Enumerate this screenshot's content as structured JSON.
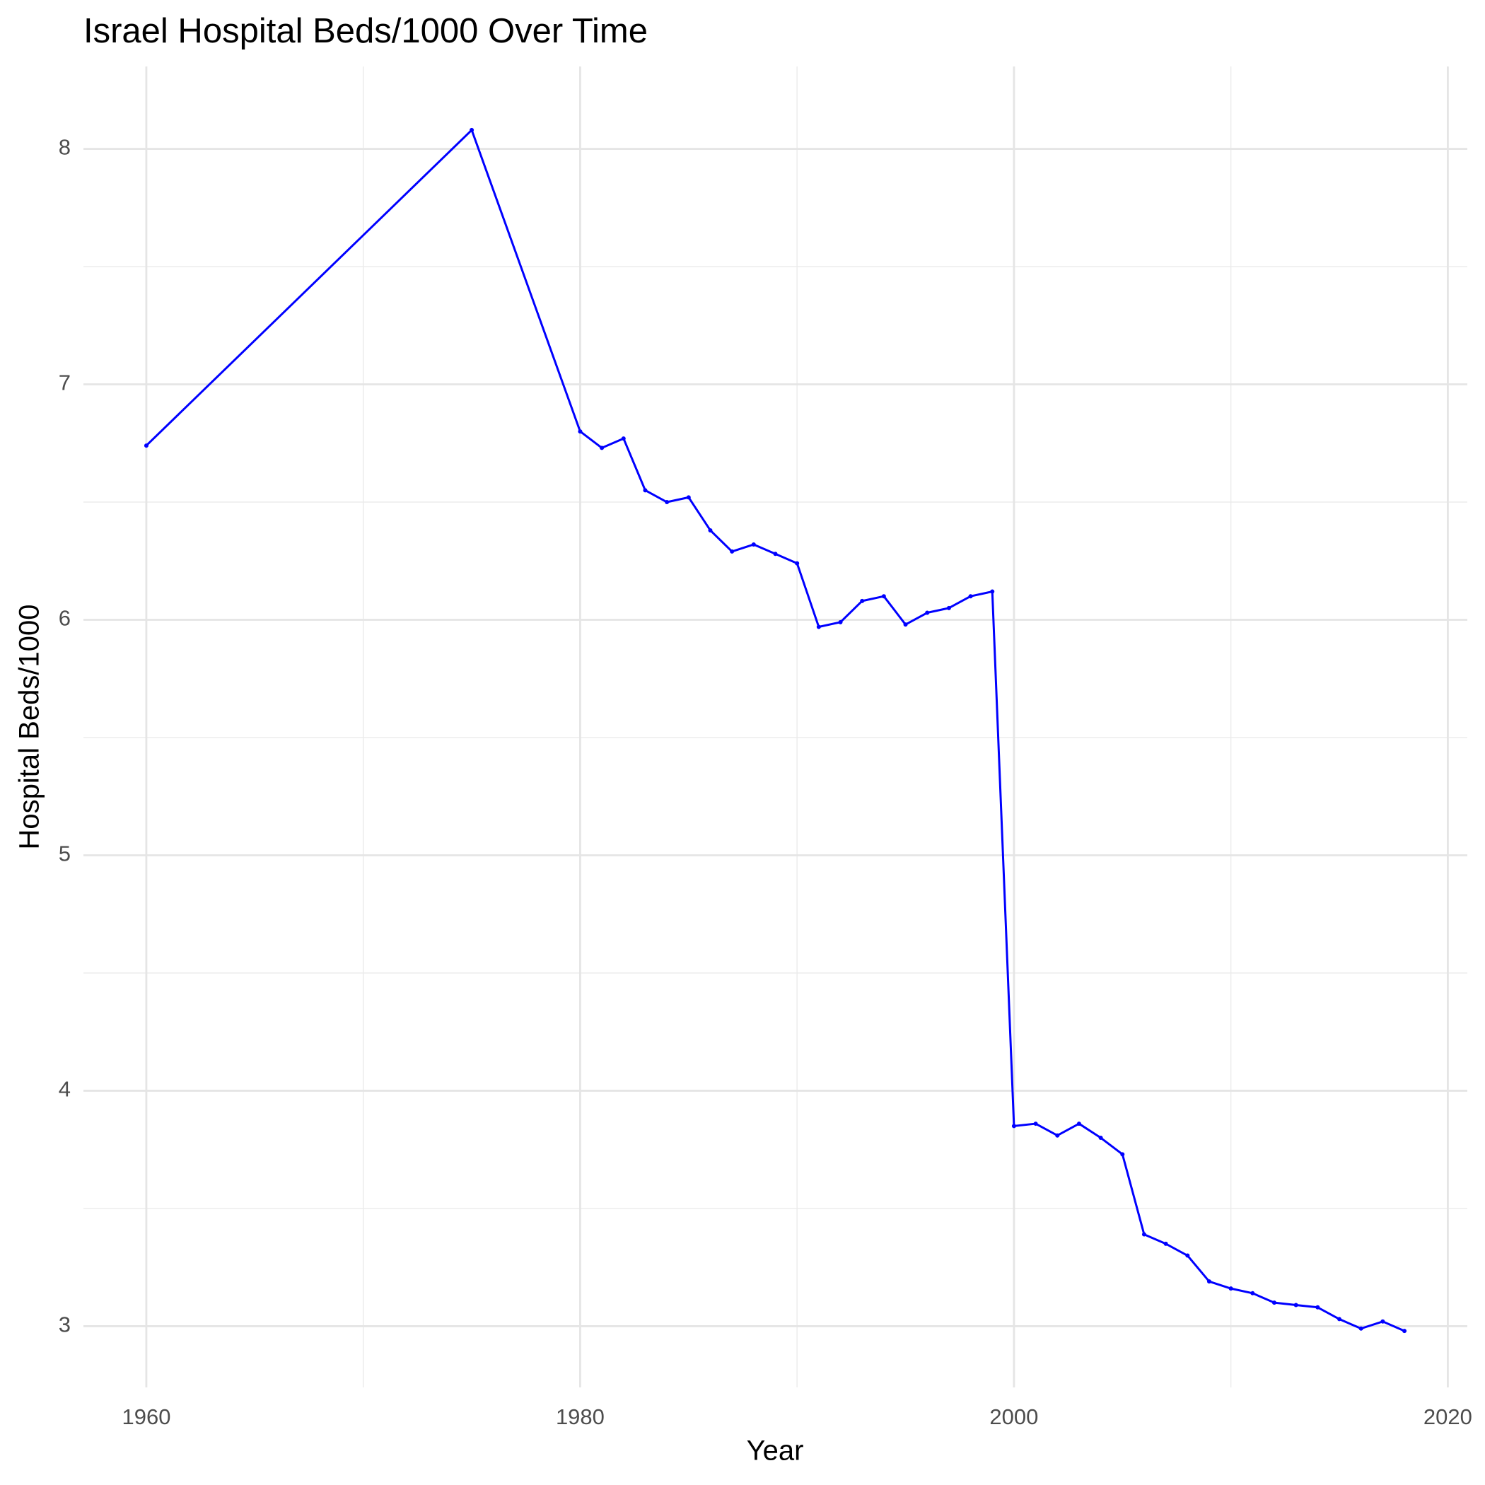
{
  "chart_data": {
    "type": "line",
    "title": "Israel Hospital Beds/1000 Over Time",
    "x_label": "Year",
    "y_label": "Hospital Beds/1000",
    "x": [
      1960,
      1975,
      1980,
      1981,
      1982,
      1983,
      1984,
      1985,
      1986,
      1987,
      1988,
      1989,
      1990,
      1991,
      1992,
      1993,
      1994,
      1995,
      1996,
      1997,
      1998,
      1999,
      2000,
      2001,
      2002,
      2003,
      2004,
      2005,
      2006,
      2007,
      2008,
      2009,
      2010,
      2011,
      2012,
      2013,
      2014,
      2015,
      2016,
      2017,
      2018
    ],
    "values": [
      6.74,
      8.08,
      6.8,
      6.73,
      6.77,
      6.55,
      6.5,
      6.52,
      6.38,
      6.29,
      6.32,
      6.28,
      6.24,
      5.97,
      5.99,
      6.08,
      6.1,
      5.98,
      6.03,
      6.05,
      6.1,
      6.12,
      3.85,
      3.86,
      3.81,
      3.86,
      3.8,
      3.73,
      3.39,
      3.35,
      3.3,
      3.19,
      3.16,
      3.14,
      3.1,
      3.09,
      3.08,
      3.03,
      2.99,
      3.02,
      2.98
    ],
    "color": "#0000ff",
    "xlim": [
      1957.1,
      2020.9
    ],
    "xticks": [
      1960,
      1980,
      2000,
      2020
    ],
    "ylim": [
      2.74,
      8.35
    ],
    "yticks": [
      3,
      4,
      5,
      6,
      7,
      8
    ],
    "grid": true
  }
}
